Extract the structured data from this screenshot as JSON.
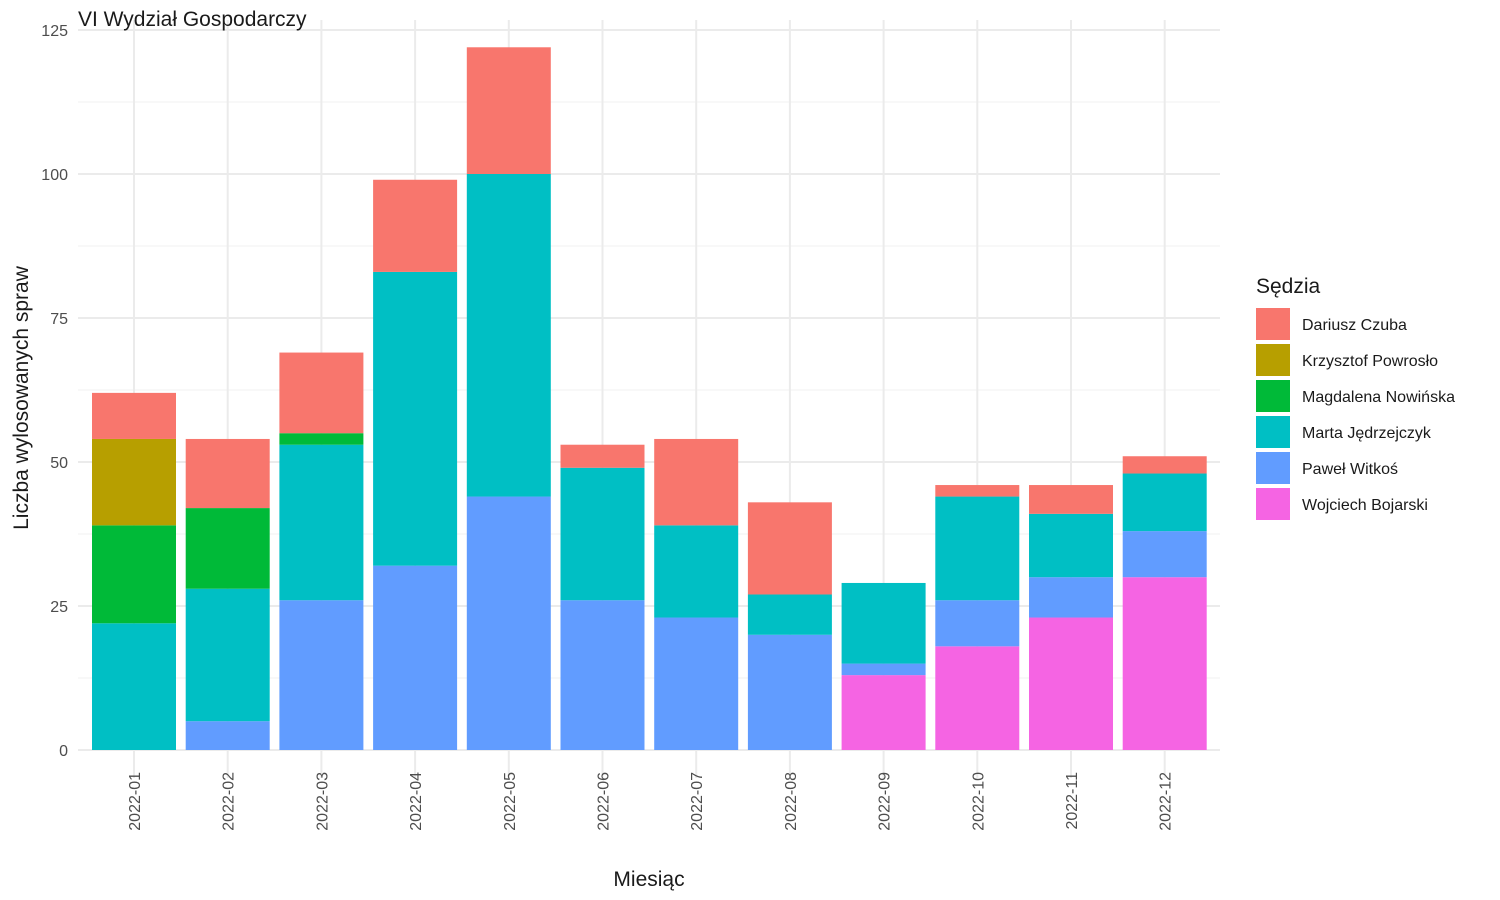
{
  "chart_data": {
    "type": "bar",
    "stacked": true,
    "title": "VI Wydział Gospodarczy",
    "xlabel": "Miesiąc",
    "ylabel": "Liczba wylosowanych spraw",
    "ylim": [
      0,
      125
    ],
    "yticks": [
      0,
      25,
      50,
      75,
      100,
      125
    ],
    "grid": true,
    "legend_title": "Sędzia",
    "legend_position": "right",
    "categories": [
      "2022-01",
      "2022-02",
      "2022-03",
      "2022-04",
      "2022-05",
      "2022-06",
      "2022-07",
      "2022-08",
      "2022-09",
      "2022-10",
      "2022-11",
      "2022-12"
    ],
    "series": [
      {
        "name": "Wojciech Bojarski",
        "color": "#F564E3",
        "values": [
          0,
          0,
          0,
          0,
          0,
          0,
          0,
          0,
          13,
          18,
          23,
          30
        ]
      },
      {
        "name": "Paweł Witkoś",
        "color": "#619CFF",
        "values": [
          0,
          5,
          26,
          32,
          44,
          26,
          23,
          20,
          2,
          8,
          7,
          8
        ]
      },
      {
        "name": "Marta Jędrzejczyk",
        "color": "#00BFC4",
        "values": [
          22,
          23,
          27,
          51,
          56,
          23,
          16,
          7,
          14,
          18,
          11,
          10
        ]
      },
      {
        "name": "Magdalena Nowińska",
        "color": "#00BA38",
        "values": [
          17,
          14,
          2,
          0,
          0,
          0,
          0,
          0,
          0,
          0,
          0,
          0
        ]
      },
      {
        "name": "Krzysztof Powrosło",
        "color": "#B79F00",
        "values": [
          15,
          0,
          0,
          0,
          0,
          0,
          0,
          0,
          0,
          0,
          0,
          0
        ]
      },
      {
        "name": "Dariusz Czuba",
        "color": "#F8766D",
        "values": [
          8,
          12,
          14,
          16,
          22,
          4,
          15,
          16,
          0,
          2,
          5,
          3
        ]
      }
    ],
    "legend_order": [
      "Dariusz Czuba",
      "Krzysztof Powrosło",
      "Magdalena Nowińska",
      "Marta Jędrzejczyk",
      "Paweł Witkoś",
      "Wojciech Bojarski"
    ]
  }
}
